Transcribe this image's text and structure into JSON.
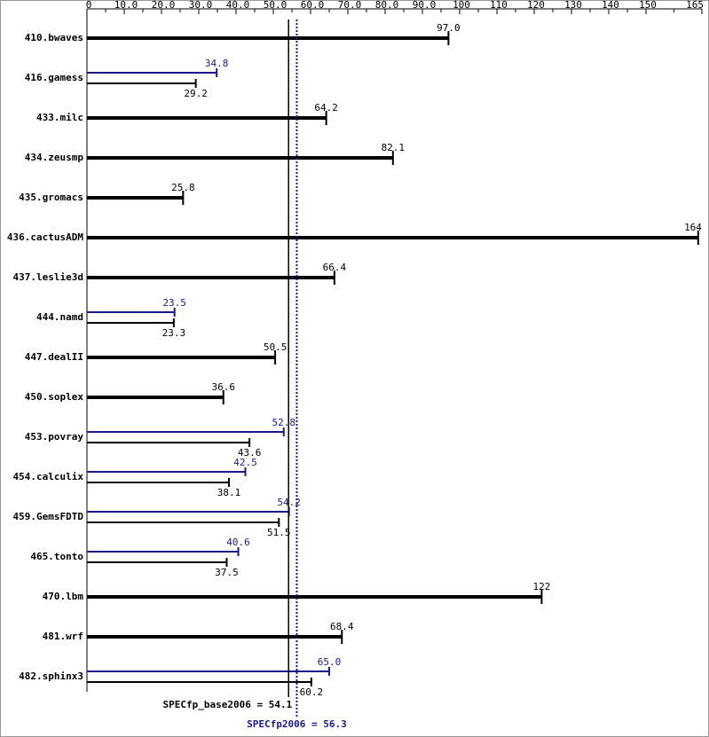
{
  "chart_data": {
    "type": "bar",
    "orientation": "horizontal",
    "categories": [
      "410.bwaves",
      "416.gamess",
      "433.milc",
      "434.zeusmp",
      "435.gromacs",
      "436.cactusADM",
      "437.leslie3d",
      "444.namd",
      "447.dealII",
      "450.soplex",
      "453.povray",
      "454.calculix",
      "459.GemsFDTD",
      "465.tonto",
      "470.lbm",
      "481.wrf",
      "482.sphinx3"
    ],
    "series": [
      {
        "color": "#000000",
        "values": [
          97.0,
          29.2,
          64.2,
          82.1,
          25.8,
          164,
          66.4,
          23.3,
          50.5,
          36.6,
          43.6,
          38.1,
          51.5,
          37.5,
          122,
          68.4,
          60.2
        ],
        "value_labels": [
          "97.0",
          "29.2",
          "64.2",
          "82.1",
          "25.8",
          "164",
          "66.4",
          "23.3",
          "50.5",
          "36.6",
          "43.6",
          "38.1",
          "51.5",
          "37.5",
          "122",
          "68.4",
          "60.2"
        ]
      },
      {
        "color": "#1a1a8c",
        "values": [
          null,
          34.8,
          null,
          null,
          null,
          null,
          null,
          23.5,
          null,
          null,
          52.8,
          42.5,
          54.2,
          40.6,
          null,
          null,
          65.0
        ],
        "value_labels": [
          null,
          "34.8",
          null,
          null,
          null,
          null,
          null,
          "23.5",
          null,
          null,
          "52.8",
          "42.5",
          "54.2",
          "40.6",
          null,
          null,
          "65.0"
        ]
      }
    ],
    "xlim": [
      0,
      165
    ],
    "xticks": [
      0,
      {
        "value": 10,
        "label": "10.0"
      },
      {
        "value": 20,
        "label": "20.0"
      },
      {
        "value": 30,
        "label": "30.0"
      },
      {
        "value": 40,
        "label": "40.0"
      },
      {
        "value": 50,
        "label": "50.0"
      },
      {
        "value": 60,
        "label": "60.0"
      },
      {
        "value": 70,
        "label": "70.0"
      },
      {
        "value": 80,
        "label": "80.0"
      },
      {
        "value": 90,
        "label": "90.0"
      },
      100,
      110,
      120,
      130,
      140,
      150,
      165
    ],
    "reference_lines": [
      {
        "label": "SPECfp_base2006 = 54.1",
        "value": 54.1,
        "color": "#000000",
        "style": "solid"
      },
      {
        "label": "SPECfp2006 = 56.3",
        "value": 56.3,
        "color": "#1a1a8c",
        "style": "dotted"
      }
    ]
  }
}
